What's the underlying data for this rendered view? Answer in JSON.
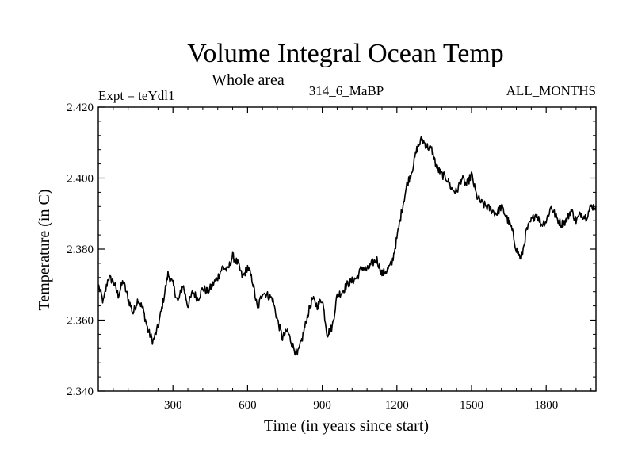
{
  "chart_data": {
    "type": "line",
    "title": "Volume Integral Ocean Temp",
    "subtitle": "Whole area",
    "left_string": "Expt = teYdl1",
    "center_string": "314_6_MaBP",
    "right_string": "ALL_MONTHS",
    "xlabel": "Time (in years since start)",
    "ylabel": "Temperature (in C)",
    "xlim": [
      0,
      2000
    ],
    "ylim": [
      2.34,
      2.42
    ],
    "xticks": [
      300,
      600,
      900,
      1200,
      1500,
      1800
    ],
    "xtick_labels": [
      "300",
      "600",
      "900",
      "1200",
      "1500",
      "1800"
    ],
    "yticks": [
      2.34,
      2.36,
      2.38,
      2.4,
      2.42
    ],
    "ytick_labels": [
      "2.340",
      "2.360",
      "2.380",
      "2.400",
      "2.420"
    ],
    "series": [
      {
        "name": "Volume Integral Ocean Temp",
        "color": "#000000",
        "x": [
          0,
          20,
          40,
          60,
          80,
          100,
          120,
          140,
          160,
          180,
          200,
          220,
          240,
          260,
          280,
          300,
          320,
          340,
          360,
          380,
          400,
          420,
          440,
          460,
          480,
          500,
          520,
          540,
          560,
          580,
          600,
          620,
          640,
          660,
          680,
          700,
          720,
          740,
          760,
          780,
          800,
          820,
          840,
          860,
          880,
          900,
          920,
          940,
          960,
          980,
          1000,
          1020,
          1040,
          1060,
          1080,
          1100,
          1120,
          1140,
          1160,
          1180,
          1200,
          1220,
          1240,
          1260,
          1280,
          1300,
          1320,
          1340,
          1360,
          1380,
          1400,
          1420,
          1440,
          1460,
          1480,
          1500,
          1520,
          1540,
          1560,
          1580,
          1600,
          1620,
          1640,
          1660,
          1680,
          1700,
          1720,
          1740,
          1760,
          1780,
          1800,
          1820,
          1840,
          1860,
          1880,
          1900,
          1920,
          1940,
          1960,
          1980,
          2000
        ],
        "values": [
          2.37,
          2.365,
          2.372,
          2.371,
          2.367,
          2.371,
          2.366,
          2.362,
          2.366,
          2.363,
          2.357,
          2.354,
          2.358,
          2.365,
          2.373,
          2.37,
          2.365,
          2.37,
          2.364,
          2.368,
          2.366,
          2.369,
          2.368,
          2.37,
          2.372,
          2.375,
          2.374,
          2.378,
          2.376,
          2.372,
          2.375,
          2.371,
          2.363,
          2.368,
          2.367,
          2.366,
          2.36,
          2.355,
          2.357,
          2.353,
          2.35,
          2.355,
          2.361,
          2.366,
          2.364,
          2.366,
          2.356,
          2.358,
          2.367,
          2.368,
          2.37,
          2.371,
          2.372,
          2.375,
          2.374,
          2.376,
          2.377,
          2.373,
          2.374,
          2.376,
          2.383,
          2.391,
          2.398,
          2.402,
          2.408,
          2.411,
          2.409,
          2.408,
          2.403,
          2.401,
          2.4,
          2.397,
          2.396,
          2.4,
          2.398,
          2.401,
          2.395,
          2.393,
          2.392,
          2.391,
          2.39,
          2.392,
          2.389,
          2.386,
          2.38,
          2.377,
          2.385,
          2.388,
          2.39,
          2.387,
          2.388,
          2.392,
          2.389,
          2.387,
          2.388,
          2.391,
          2.388,
          2.39,
          2.389,
          2.392,
          2.392
        ]
      }
    ],
    "grid": false,
    "legend": "none"
  }
}
